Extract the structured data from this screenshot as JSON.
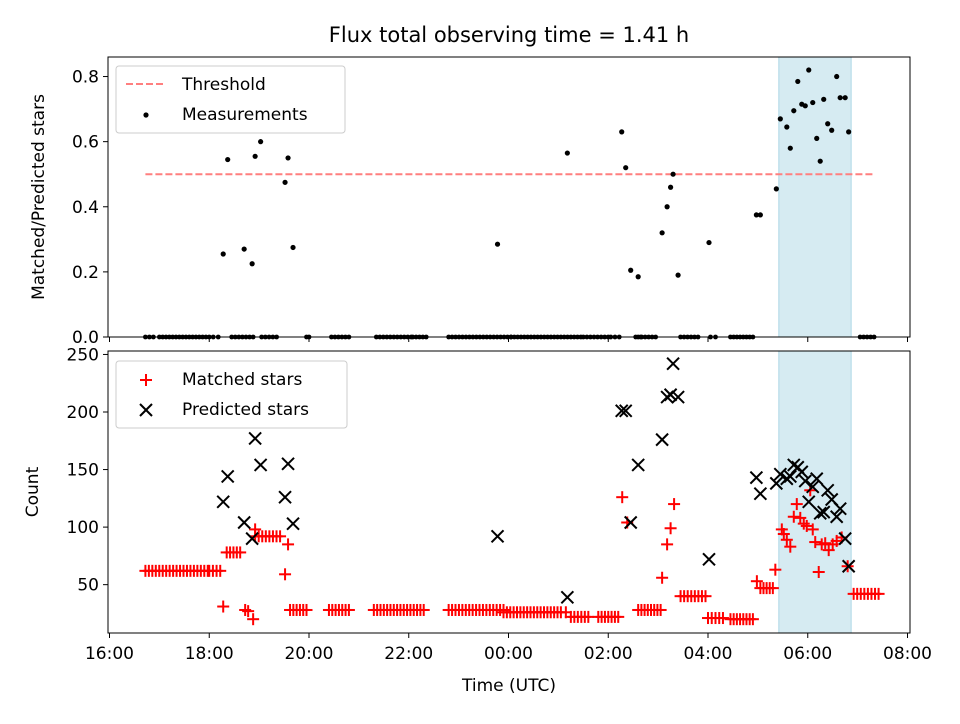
{
  "title": "Flux total observing time = 1.41 h",
  "colors": {
    "threshold": "#ff7f7f",
    "measurement": "#000000",
    "matched": "#ff0000",
    "predicted": "#000000",
    "highlight": "#add8e6"
  },
  "chart_data": [
    {
      "type": "scatter",
      "ylabel": "Matched/Predicted stars",
      "ylim": [
        0,
        0.86
      ],
      "yticks": [
        "0.0",
        "0.2",
        "0.4",
        "0.6",
        "0.8"
      ],
      "ytick_values": [
        0,
        0.2,
        0.4,
        0.6,
        0.8
      ],
      "xlim_hours": [
        15.97,
        32.05
      ],
      "highlight_span_hours": [
        29.42,
        30.87
      ],
      "legend": {
        "placement": "top-left",
        "threshold_label": "Threshold",
        "measurements_label": "Measurements"
      },
      "threshold": {
        "value": 0.5,
        "x_hours": [
          16.72,
          31.33
        ]
      },
      "measurements": [
        {
          "x": 18.28,
          "y": 0.255
        },
        {
          "x": 18.37,
          "y": 0.545
        },
        {
          "x": 18.7,
          "y": 0.27
        },
        {
          "x": 18.86,
          "y": 0.225
        },
        {
          "x": 18.92,
          "y": 0.555
        },
        {
          "x": 19.03,
          "y": 0.6
        },
        {
          "x": 19.52,
          "y": 0.475
        },
        {
          "x": 19.58,
          "y": 0.55
        },
        {
          "x": 19.68,
          "y": 0.275
        },
        {
          "x": 23.78,
          "y": 0.285
        },
        {
          "x": 25.18,
          "y": 0.565
        },
        {
          "x": 26.27,
          "y": 0.63
        },
        {
          "x": 26.35,
          "y": 0.52
        },
        {
          "x": 26.45,
          "y": 0.205
        },
        {
          "x": 26.6,
          "y": 0.185
        },
        {
          "x": 27.08,
          "y": 0.32
        },
        {
          "x": 27.18,
          "y": 0.4
        },
        {
          "x": 27.25,
          "y": 0.46
        },
        {
          "x": 27.3,
          "y": 0.5
        },
        {
          "x": 27.4,
          "y": 0.19
        },
        {
          "x": 28.02,
          "y": 0.29
        },
        {
          "x": 28.97,
          "y": 0.375
        },
        {
          "x": 29.05,
          "y": 0.375
        },
        {
          "x": 29.37,
          "y": 0.455
        },
        {
          "x": 29.45,
          "y": 0.67
        },
        {
          "x": 29.58,
          "y": 0.645
        },
        {
          "x": 29.65,
          "y": 0.58
        },
        {
          "x": 29.72,
          "y": 0.695
        },
        {
          "x": 29.8,
          "y": 0.785
        },
        {
          "x": 29.88,
          "y": 0.715
        },
        {
          "x": 29.95,
          "y": 0.71
        },
        {
          "x": 30.02,
          "y": 0.82
        },
        {
          "x": 30.1,
          "y": 0.72
        },
        {
          "x": 30.18,
          "y": 0.61
        },
        {
          "x": 30.25,
          "y": 0.54
        },
        {
          "x": 30.32,
          "y": 0.73
        },
        {
          "x": 30.4,
          "y": 0.655
        },
        {
          "x": 30.48,
          "y": 0.635
        },
        {
          "x": 30.58,
          "y": 0.8
        },
        {
          "x": 30.65,
          "y": 0.735
        },
        {
          "x": 30.75,
          "y": 0.735
        },
        {
          "x": 30.82,
          "y": 0.63
        }
      ],
      "zero_ranges_hours": [
        [
          16.72,
          16.88
        ],
        [
          17.0,
          18.0
        ],
        [
          18.08,
          18.18
        ],
        [
          18.45,
          18.88
        ],
        [
          19.05,
          19.35
        ],
        [
          19.95,
          20.0
        ],
        [
          20.45,
          20.8
        ],
        [
          21.35,
          22.05
        ],
        [
          22.08,
          22.35
        ],
        [
          22.8,
          24.05
        ],
        [
          24.05,
          25.45
        ],
        [
          25.5,
          26.0
        ],
        [
          26.05,
          26.22
        ],
        [
          26.55,
          26.65
        ],
        [
          26.6,
          26.95
        ],
        [
          27.45,
          27.8
        ],
        [
          28.05,
          28.15
        ],
        [
          28.45,
          28.9
        ],
        [
          31.05,
          31.33
        ]
      ]
    },
    {
      "type": "scatter",
      "xlabel": "Time (UTC)",
      "ylabel": "Count",
      "ylim": [
        8,
        253
      ],
      "yticks": [
        "50",
        "100",
        "150",
        "200",
        "250"
      ],
      "ytick_values": [
        50,
        100,
        150,
        200,
        250
      ],
      "xticks": [
        "16:00",
        "18:00",
        "20:00",
        "22:00",
        "00:00",
        "02:00",
        "04:00",
        "06:00",
        "08:00"
      ],
      "xtick_hours": [
        16,
        18,
        20,
        22,
        24,
        26,
        28,
        30,
        32
      ],
      "xlim_hours": [
        15.97,
        32.05
      ],
      "highlight_span_hours": [
        29.42,
        30.87
      ],
      "legend": {
        "placement": "top-left",
        "matched_label": "Matched stars",
        "predicted_label": "Predicted stars"
      },
      "matched_runs": [
        {
          "x0": 16.72,
          "x1": 17.97,
          "y": 62
        },
        {
          "x0": 18.0,
          "x1": 18.22,
          "y": 62
        },
        {
          "x0": 18.35,
          "x1": 18.62,
          "y": 78
        },
        {
          "x0": 18.92,
          "x1": 19.42,
          "y": 92
        },
        {
          "x0": 19.62,
          "x1": 19.95,
          "y": 28
        },
        {
          "x0": 20.4,
          "x1": 20.8,
          "y": 28
        },
        {
          "x0": 21.3,
          "x1": 22.3,
          "y": 28
        },
        {
          "x0": 22.8,
          "x1": 23.9,
          "y": 28
        },
        {
          "x0": 23.9,
          "x1": 25.05,
          "y": 26
        },
        {
          "x0": 25.25,
          "x1": 25.6,
          "y": 22
        },
        {
          "x0": 25.8,
          "x1": 26.2,
          "y": 22
        },
        {
          "x0": 26.6,
          "x1": 27.05,
          "y": 28
        },
        {
          "x0": 27.45,
          "x1": 27.95,
          "y": 40
        },
        {
          "x0": 28.0,
          "x1": 28.3,
          "y": 21
        },
        {
          "x0": 28.45,
          "x1": 28.9,
          "y": 20
        },
        {
          "x0": 29.05,
          "x1": 29.3,
          "y": 47
        },
        {
          "x0": 30.92,
          "x1": 31.42,
          "y": 42
        }
      ],
      "matched_points": [
        {
          "x": 18.28,
          "y": 31
        },
        {
          "x": 18.72,
          "y": 28
        },
        {
          "x": 18.78,
          "y": 27
        },
        {
          "x": 18.88,
          "y": 20
        },
        {
          "x": 18.92,
          "y": 98
        },
        {
          "x": 19.52,
          "y": 59
        },
        {
          "x": 19.58,
          "y": 85
        },
        {
          "x": 25.15,
          "y": 26
        },
        {
          "x": 26.28,
          "y": 126
        },
        {
          "x": 26.38,
          "y": 104
        },
        {
          "x": 27.08,
          "y": 56
        },
        {
          "x": 27.18,
          "y": 85
        },
        {
          "x": 27.25,
          "y": 99
        },
        {
          "x": 27.32,
          "y": 120
        },
        {
          "x": 28.98,
          "y": 53
        },
        {
          "x": 29.35,
          "y": 63
        },
        {
          "x": 29.48,
          "y": 98
        },
        {
          "x": 29.52,
          "y": 94
        },
        {
          "x": 29.58,
          "y": 89
        },
        {
          "x": 29.65,
          "y": 83
        },
        {
          "x": 29.72,
          "y": 109
        },
        {
          "x": 29.78,
          "y": 120
        },
        {
          "x": 29.85,
          "y": 108
        },
        {
          "x": 29.92,
          "y": 103
        },
        {
          "x": 29.98,
          "y": 101
        },
        {
          "x": 30.05,
          "y": 132
        },
        {
          "x": 30.1,
          "y": 98
        },
        {
          "x": 30.15,
          "y": 87
        },
        {
          "x": 30.22,
          "y": 61
        },
        {
          "x": 30.28,
          "y": 85
        },
        {
          "x": 30.35,
          "y": 86
        },
        {
          "x": 30.42,
          "y": 80
        },
        {
          "x": 30.5,
          "y": 85
        },
        {
          "x": 30.58,
          "y": 88
        },
        {
          "x": 30.68,
          "y": 91
        },
        {
          "x": 30.8,
          "y": 66
        }
      ],
      "predicted": [
        {
          "x": 18.28,
          "y": 122
        },
        {
          "x": 18.37,
          "y": 144
        },
        {
          "x": 18.7,
          "y": 104
        },
        {
          "x": 18.86,
          "y": 90
        },
        {
          "x": 18.92,
          "y": 177
        },
        {
          "x": 19.03,
          "y": 154
        },
        {
          "x": 19.52,
          "y": 126
        },
        {
          "x": 19.58,
          "y": 155
        },
        {
          "x": 19.68,
          "y": 103
        },
        {
          "x": 23.78,
          "y": 92
        },
        {
          "x": 25.18,
          "y": 39
        },
        {
          "x": 26.27,
          "y": 201
        },
        {
          "x": 26.35,
          "y": 201
        },
        {
          "x": 26.45,
          "y": 104
        },
        {
          "x": 26.6,
          "y": 154
        },
        {
          "x": 27.08,
          "y": 176
        },
        {
          "x": 27.18,
          "y": 213
        },
        {
          "x": 27.25,
          "y": 215
        },
        {
          "x": 27.3,
          "y": 242
        },
        {
          "x": 27.4,
          "y": 213
        },
        {
          "x": 28.02,
          "y": 72
        },
        {
          "x": 28.97,
          "y": 143
        },
        {
          "x": 29.05,
          "y": 129
        },
        {
          "x": 29.37,
          "y": 138
        },
        {
          "x": 29.45,
          "y": 146
        },
        {
          "x": 29.58,
          "y": 142
        },
        {
          "x": 29.65,
          "y": 144
        },
        {
          "x": 29.72,
          "y": 154
        },
        {
          "x": 29.8,
          "y": 152
        },
        {
          "x": 29.88,
          "y": 148
        },
        {
          "x": 29.95,
          "y": 140
        },
        {
          "x": 30.02,
          "y": 122
        },
        {
          "x": 30.1,
          "y": 135
        },
        {
          "x": 30.18,
          "y": 142
        },
        {
          "x": 30.25,
          "y": 112
        },
        {
          "x": 30.32,
          "y": 113
        },
        {
          "x": 30.4,
          "y": 132
        },
        {
          "x": 30.48,
          "y": 124
        },
        {
          "x": 30.58,
          "y": 109
        },
        {
          "x": 30.65,
          "y": 116
        },
        {
          "x": 30.75,
          "y": 90
        },
        {
          "x": 30.82,
          "y": 66
        }
      ]
    }
  ]
}
